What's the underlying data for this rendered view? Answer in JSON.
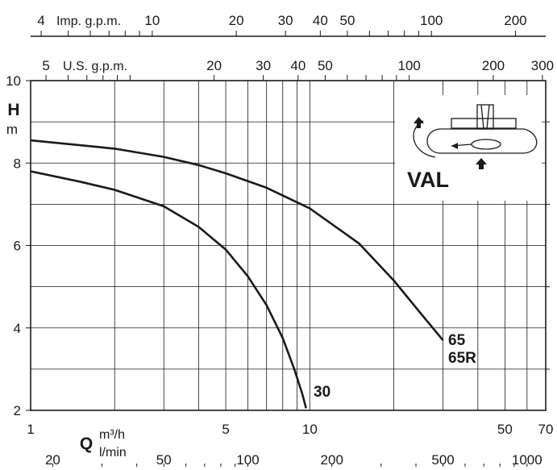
{
  "chart_data": {
    "type": "line",
    "xscale": "log",
    "xlim": [
      1,
      70
    ],
    "ylim": [
      2,
      10
    ],
    "x_axis": {
      "unit_top": "m³/h",
      "unit_bottom": "l/min",
      "symbol": "Q",
      "ticks_m3h": [
        1,
        5,
        10,
        50,
        70
      ],
      "ticks_lmin": [
        20,
        50,
        100,
        200,
        500,
        1000
      ]
    },
    "y_axis": {
      "symbol": "H",
      "unit": "m",
      "ticks": [
        2,
        4,
        6,
        8,
        10
      ]
    },
    "top_axes": [
      {
        "label": "Imp. g.p.m.",
        "ticks": [
          4,
          10,
          20,
          30,
          40,
          50,
          100,
          200
        ]
      },
      {
        "label": "U.S. g.p.m.",
        "ticks": [
          5,
          20,
          30,
          40,
          50,
          100,
          200,
          300
        ]
      }
    ],
    "grid": true,
    "series": [
      {
        "name": "30",
        "x": [
          1,
          1.5,
          2,
          3,
          4,
          5,
          6,
          7,
          8,
          8.8,
          9.4,
          9.7
        ],
        "y": [
          7.8,
          7.55,
          7.35,
          6.95,
          6.45,
          5.9,
          5.25,
          4.55,
          3.75,
          3.0,
          2.4,
          2.05
        ]
      },
      {
        "name": "65\n65R",
        "x": [
          1,
          2,
          3,
          4,
          5,
          7,
          10,
          15,
          20,
          25,
          30
        ],
        "y": [
          8.55,
          8.35,
          8.15,
          7.95,
          7.75,
          7.4,
          6.9,
          6.05,
          5.15,
          4.35,
          3.7
        ]
      }
    ],
    "series_labels": [
      "30",
      "65",
      "65R"
    ],
    "inset": {
      "label": "VAL"
    }
  }
}
